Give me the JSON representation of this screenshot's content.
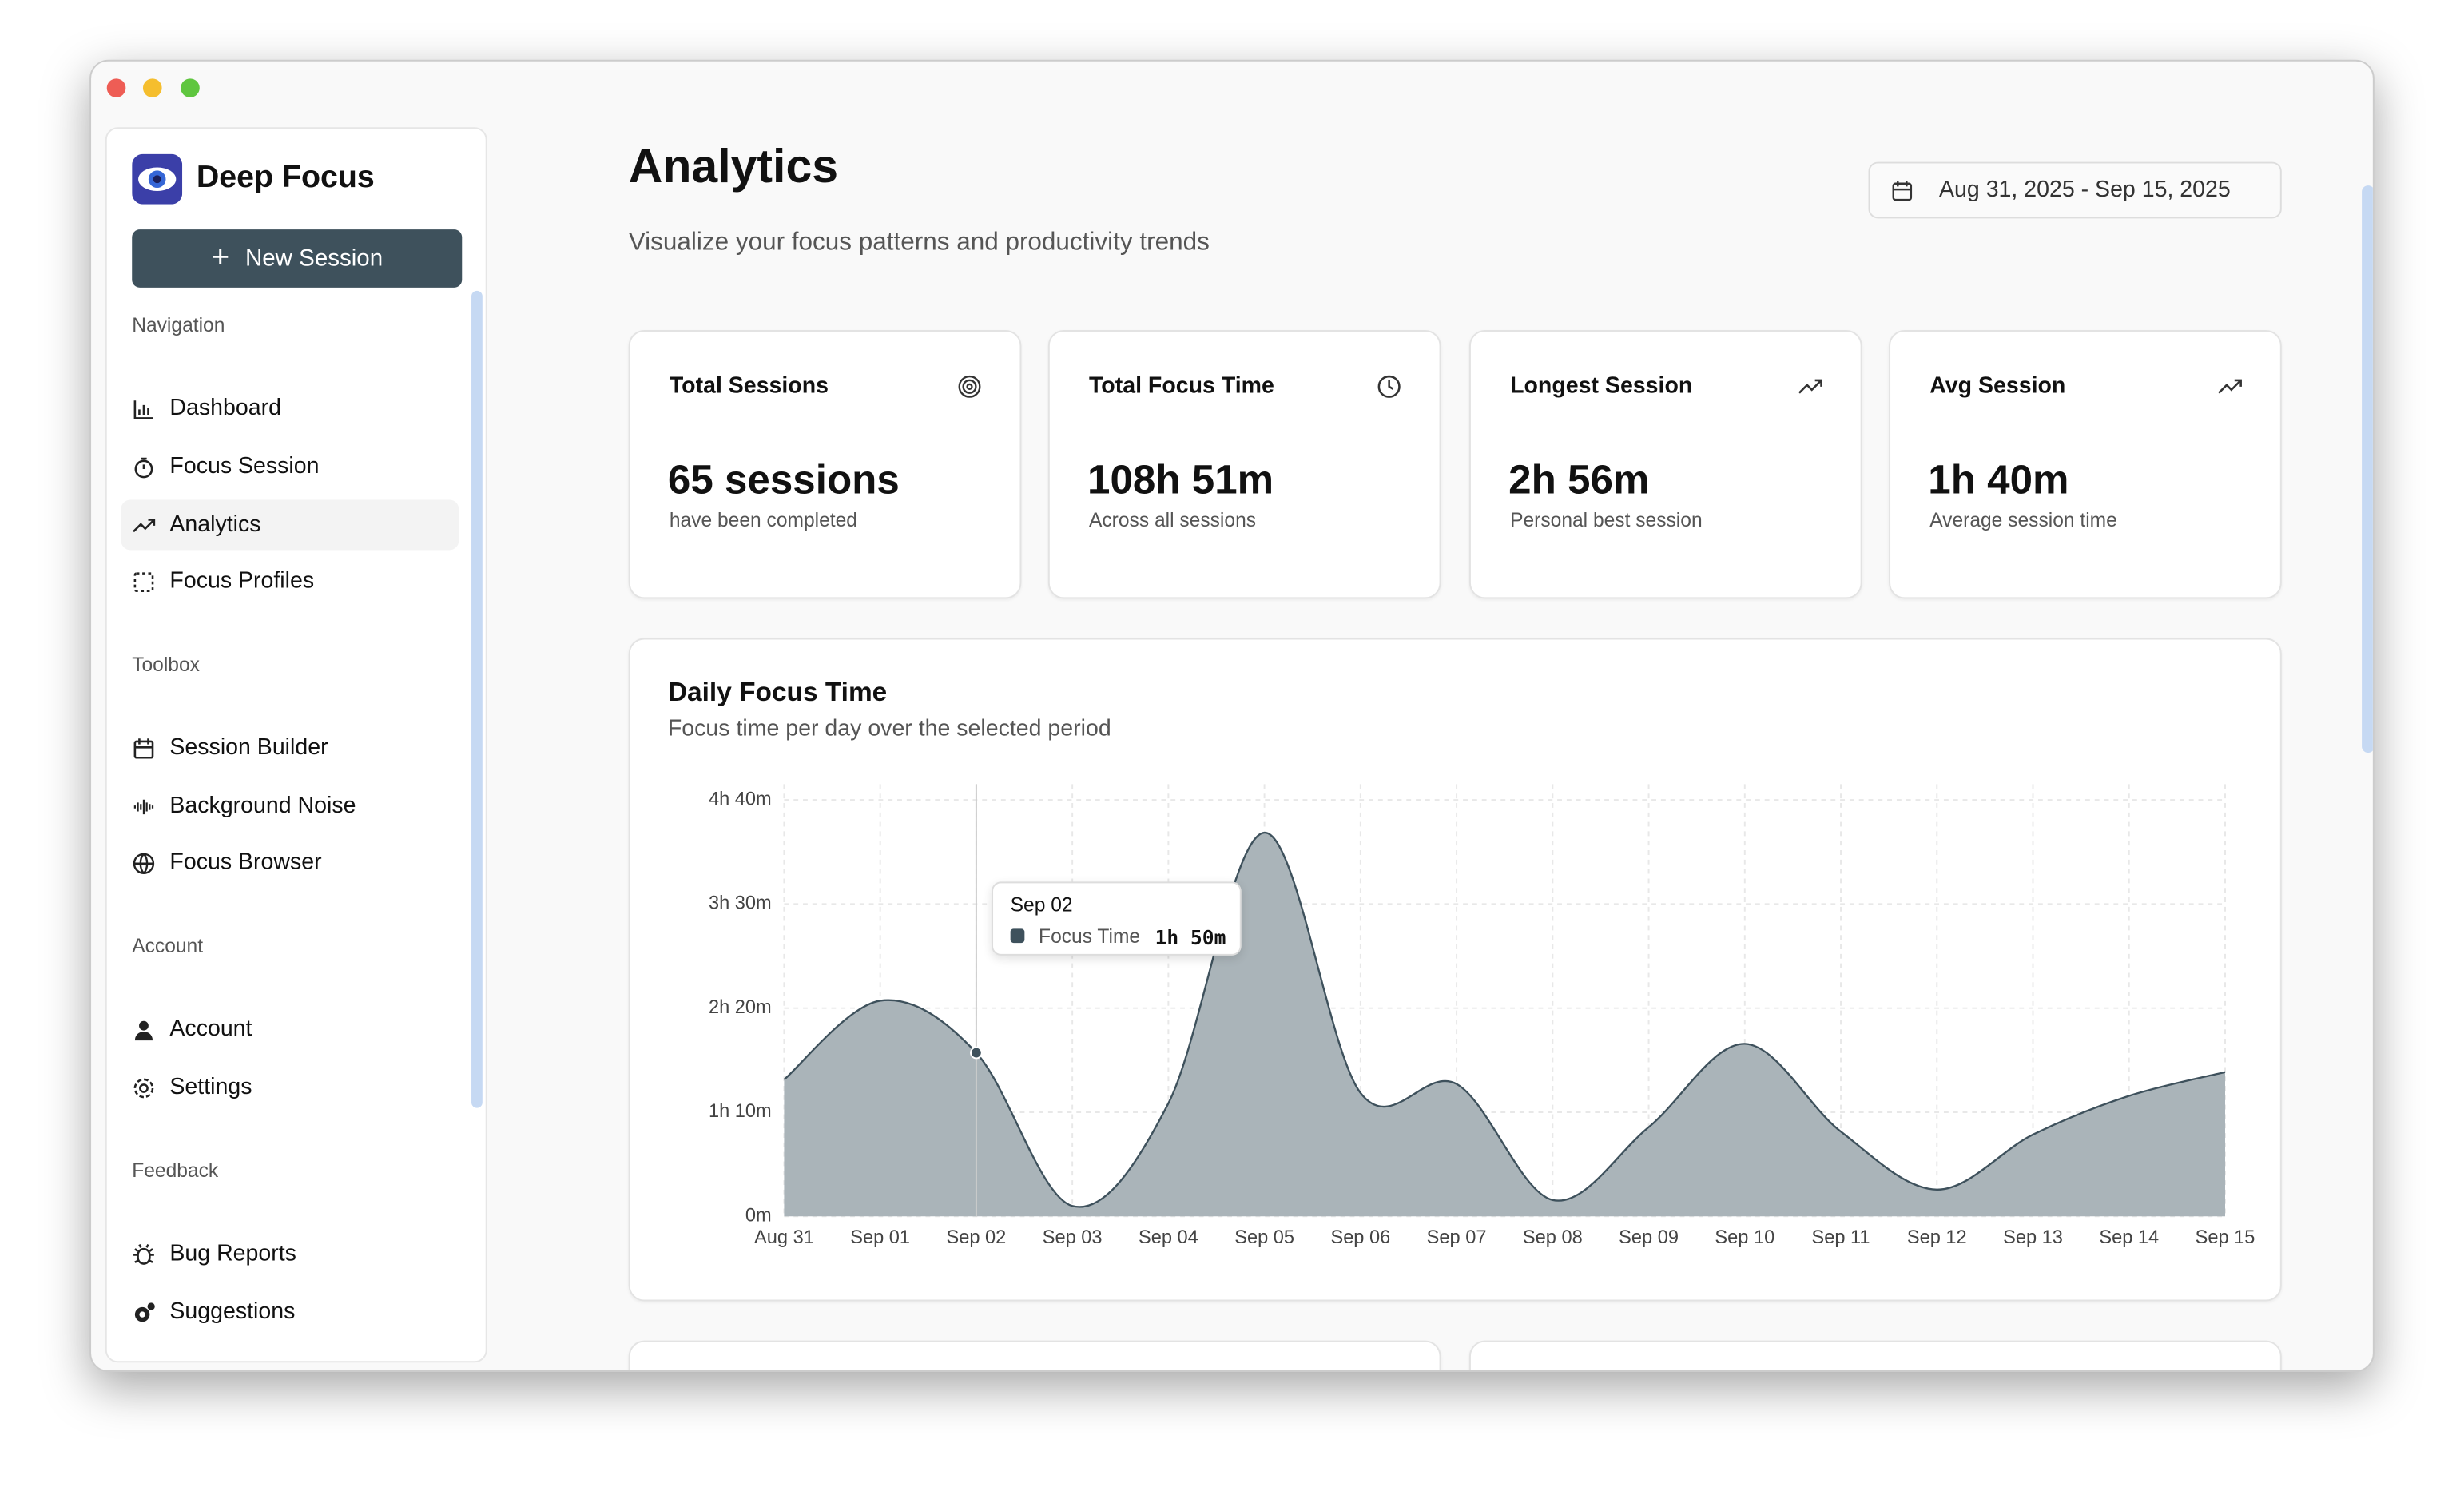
{
  "sidebar": {
    "app_name": "Deep Focus",
    "new_session": "New Session",
    "sections": [
      {
        "label": "Navigation",
        "items": [
          "Dashboard",
          "Focus Session",
          "Analytics",
          "Focus Profiles"
        ]
      },
      {
        "label": "Toolbox",
        "items": [
          "Session Builder",
          "Background Noise",
          "Focus Browser"
        ]
      },
      {
        "label": "Account",
        "items": [
          "Account",
          "Settings"
        ]
      },
      {
        "label": "Feedback",
        "items": [
          "Bug Reports",
          "Suggestions"
        ]
      }
    ]
  },
  "header": {
    "title": "Analytics",
    "subtitle": "Visualize your focus patterns and productivity trends",
    "date_range": "Aug 31, 2025 - Sep 15, 2025"
  },
  "stats": [
    {
      "title": "Total Sessions",
      "value": "65 sessions",
      "caption": "have been completed"
    },
    {
      "title": "Total Focus Time",
      "value": "108h 51m",
      "caption": "Across all sessions"
    },
    {
      "title": "Longest Session",
      "value": "2h 56m",
      "caption": "Personal best session"
    },
    {
      "title": "Avg Session",
      "value": "1h 40m",
      "caption": "Average session time"
    }
  ],
  "chart": {
    "type": "area",
    "title": "Daily Focus Time",
    "subtitle": "Focus time per day over the selected period",
    "categories": [
      "Aug 31",
      "Sep 01",
      "Sep 02",
      "Sep 03",
      "Sep 04",
      "Sep 05",
      "Sep 06",
      "Sep 07",
      "Sep 08",
      "Sep 09",
      "Sep 10",
      "Sep 11",
      "Sep 12",
      "Sep 13",
      "Sep 14",
      "Sep 15"
    ],
    "series": [
      {
        "name": "Focus Time",
        "color": "#aab4b9",
        "values": [
          92,
          145,
          110,
          7,
          76,
          258,
          83,
          89,
          11,
          60,
          116,
          57,
          18,
          55,
          81,
          97
        ]
      }
    ],
    "ylim": [
      0,
      280
    ],
    "yticks": [
      {
        "value": 0,
        "label": "0m"
      },
      {
        "value": 70,
        "label": "1h 10m"
      },
      {
        "value": 140,
        "label": "2h 20m"
      },
      {
        "value": 210,
        "label": "3h 30m"
      },
      {
        "value": 280,
        "label": "4h 40m"
      }
    ],
    "grid": true,
    "tooltip": {
      "category": "Sep 02",
      "value": "1h 50m"
    }
  }
}
